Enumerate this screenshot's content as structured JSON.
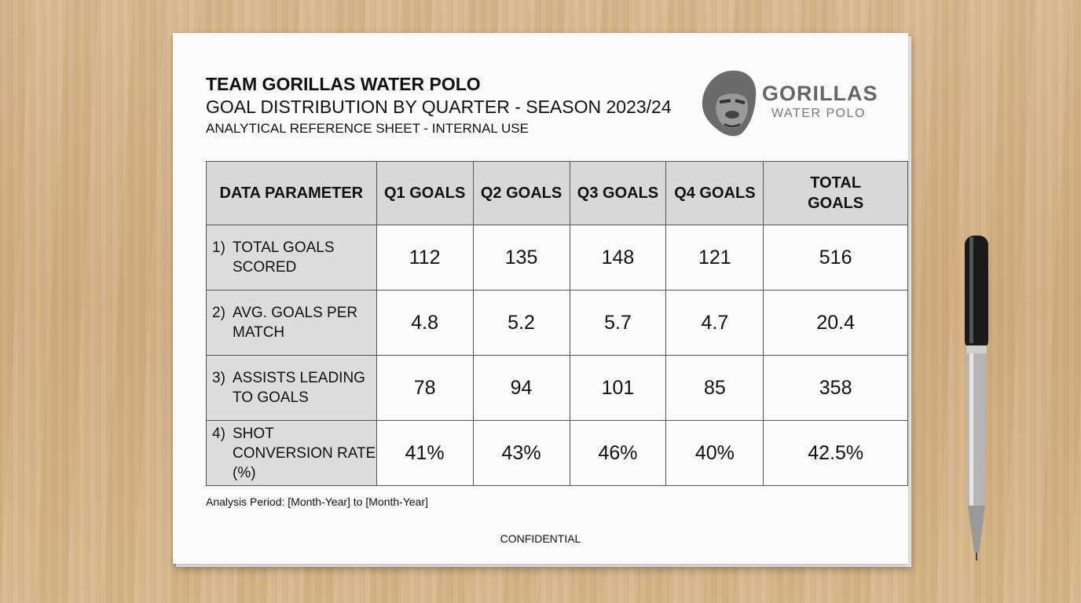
{
  "header": {
    "title": "TEAM GORILLAS WATER POLO",
    "subtitle": "GOAL DISTRIBUTION BY QUARTER - SEASON 2023/24",
    "note": "ANALYTICAL REFERENCE SHEET - INTERNAL USE"
  },
  "logo": {
    "name": "GORILLAS",
    "tagline": "WATER POLO"
  },
  "table": {
    "headers": [
      "DATA PARAMETER",
      "Q1 GOALS",
      "Q2 GOALS",
      "Q3 GOALS",
      "Q4 GOALS",
      "TOTAL GOALS"
    ],
    "rows": [
      {
        "number": "1)",
        "label": "TOTAL GOALS SCORED",
        "cells": [
          "112",
          "135",
          "148",
          "121",
          "516"
        ]
      },
      {
        "number": "2)",
        "label": "AVG. GOALS PER MATCH",
        "cells": [
          "4.8",
          "5.2",
          "5.7",
          "4.7",
          "20.4"
        ]
      },
      {
        "number": "3)",
        "label": "ASSISTS LEADING TO GOALS",
        "cells": [
          "78",
          "94",
          "101",
          "85",
          "358"
        ]
      },
      {
        "number": "4)",
        "label": "SHOT CONVERSION RATE (%)",
        "cells": [
          "41%",
          "43%",
          "46%",
          "40%",
          "42.5%"
        ]
      }
    ]
  },
  "footer": {
    "period": "Analysis Period: [Month-Year] to [Month-Year]",
    "confidential": "CONFIDENTIAL"
  }
}
